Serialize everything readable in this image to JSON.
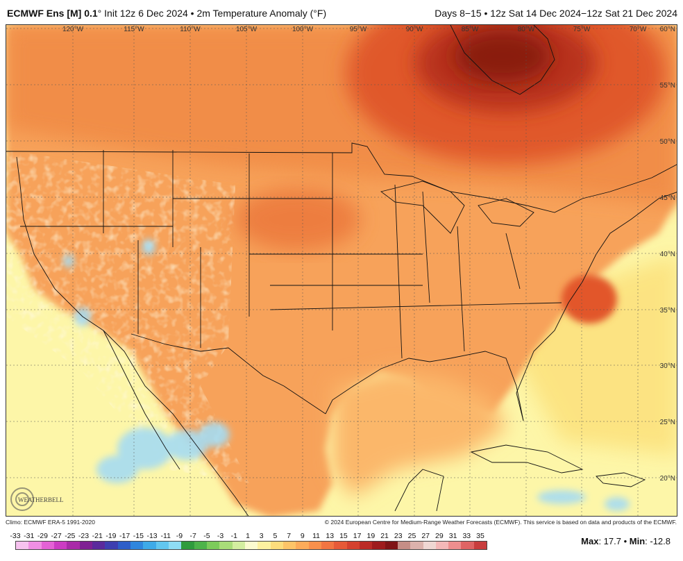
{
  "header": {
    "model_bold": "ECMWF Ens [M] 0.1",
    "model_rest": "° Init 12z 6 Dec 2024 • 2m Temperature Anomaly (°F)",
    "valid": "Days 8−15 • 12z Sat 14 Dec 2024−12z Sat 21 Dec 2024"
  },
  "map": {
    "lon_labels": [
      "120°W",
      "115°W",
      "110°W",
      "105°W",
      "100°W",
      "95°W",
      "90°W",
      "85°W",
      "80°W",
      "75°W",
      "70°W"
    ],
    "lat_labels": [
      "60°N",
      "55°N",
      "50°N",
      "45°N",
      "40°N",
      "35°N",
      "30°N",
      "25°N",
      "20°N"
    ],
    "colors": {
      "ocean_neutral": "#fdf6a8",
      "land_warm": "#f7a25a",
      "warm_core": "#e0582a",
      "hot_core": "#8a1a10",
      "cool": "#a6dcf2"
    }
  },
  "logo": {
    "text": "WEATHERBELL"
  },
  "footer": {
    "climo": "Climo: ECMWF ERA-5 1991-2020",
    "copyright": "© 2024 European Centre for Medium-Range Weather Forecasts (ECMWF). This service is based on data and products of the ECMWF."
  },
  "legend": {
    "labels": [
      "-33",
      "-31",
      "-29",
      "-27",
      "-25",
      "-23",
      "-21",
      "-19",
      "-17",
      "-15",
      "-13",
      "-11",
      "-9",
      "-7",
      "-5",
      "-3",
      "-1",
      "1",
      "3",
      "5",
      "7",
      "9",
      "11",
      "13",
      "15",
      "17",
      "19",
      "21",
      "23",
      "25",
      "27",
      "29",
      "31",
      "33",
      "35"
    ],
    "colors": [
      "#f7c2ef",
      "#f08fe3",
      "#e462d6",
      "#cc3cc3",
      "#a92aa8",
      "#7f2193",
      "#5b2a9c",
      "#3e3fb0",
      "#2e5ec8",
      "#2f86dd",
      "#3eaae8",
      "#62c6ef",
      "#8fdcf4",
      "#2f9b3d",
      "#4db34a",
      "#7ccb5b",
      "#a9dd79",
      "#d3eea0",
      "#fbfbd0",
      "#fdf1a0",
      "#fddc7c",
      "#fdc468",
      "#fcab5a",
      "#f9904c",
      "#f27542",
      "#e65a38",
      "#d4412f",
      "#bb2b26",
      "#9e1c1d",
      "#7f1416",
      "#c58e86",
      "#dcb2ac",
      "#efd7d3",
      "#f4b8b8",
      "#ee8e8e",
      "#df6464",
      "#c83d3d"
    ],
    "max_label": "Max",
    "max_value": ": 17.7",
    "sep": " • ",
    "min_label": "Min",
    "min_value": ": -12.8"
  }
}
